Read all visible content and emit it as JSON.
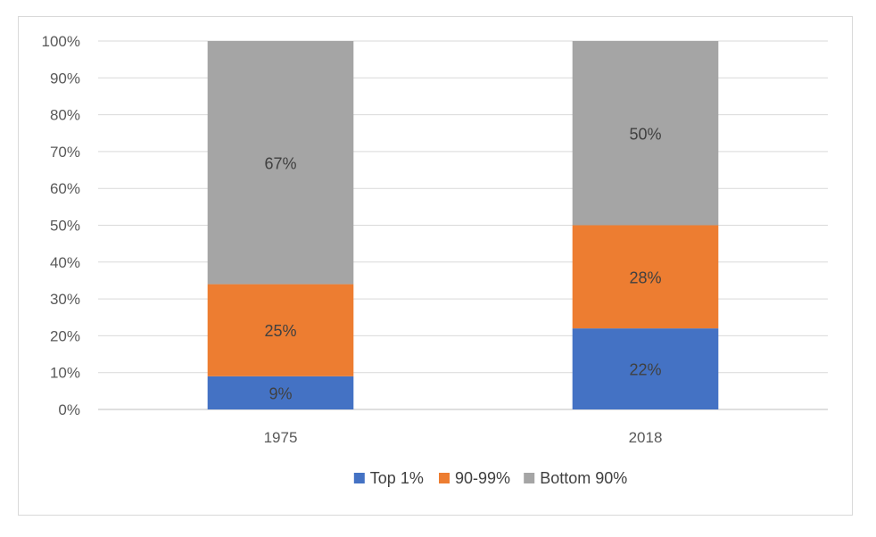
{
  "chart_data": {
    "type": "bar",
    "stacked": true,
    "categories": [
      "1975",
      "2018"
    ],
    "series": [
      {
        "name": "Top 1%",
        "values": [
          9,
          22
        ],
        "labels": [
          "9%",
          "22%"
        ],
        "color": "#4472c4"
      },
      {
        "name": "90-99%",
        "values": [
          25,
          28
        ],
        "labels": [
          "25%",
          "28%"
        ],
        "color": "#ed7d31"
      },
      {
        "name": "Bottom 90%",
        "values": [
          67,
          50
        ],
        "labels": [
          "67%",
          "50%"
        ],
        "color": "#a5a5a5"
      }
    ],
    "ylim": [
      0,
      100
    ],
    "yticks": [
      "0%",
      "10%",
      "20%",
      "30%",
      "40%",
      "50%",
      "60%",
      "70%",
      "80%",
      "90%",
      "100%"
    ],
    "grid": true,
    "legend": "bottom",
    "title": "",
    "xlabel": "",
    "ylabel": ""
  }
}
